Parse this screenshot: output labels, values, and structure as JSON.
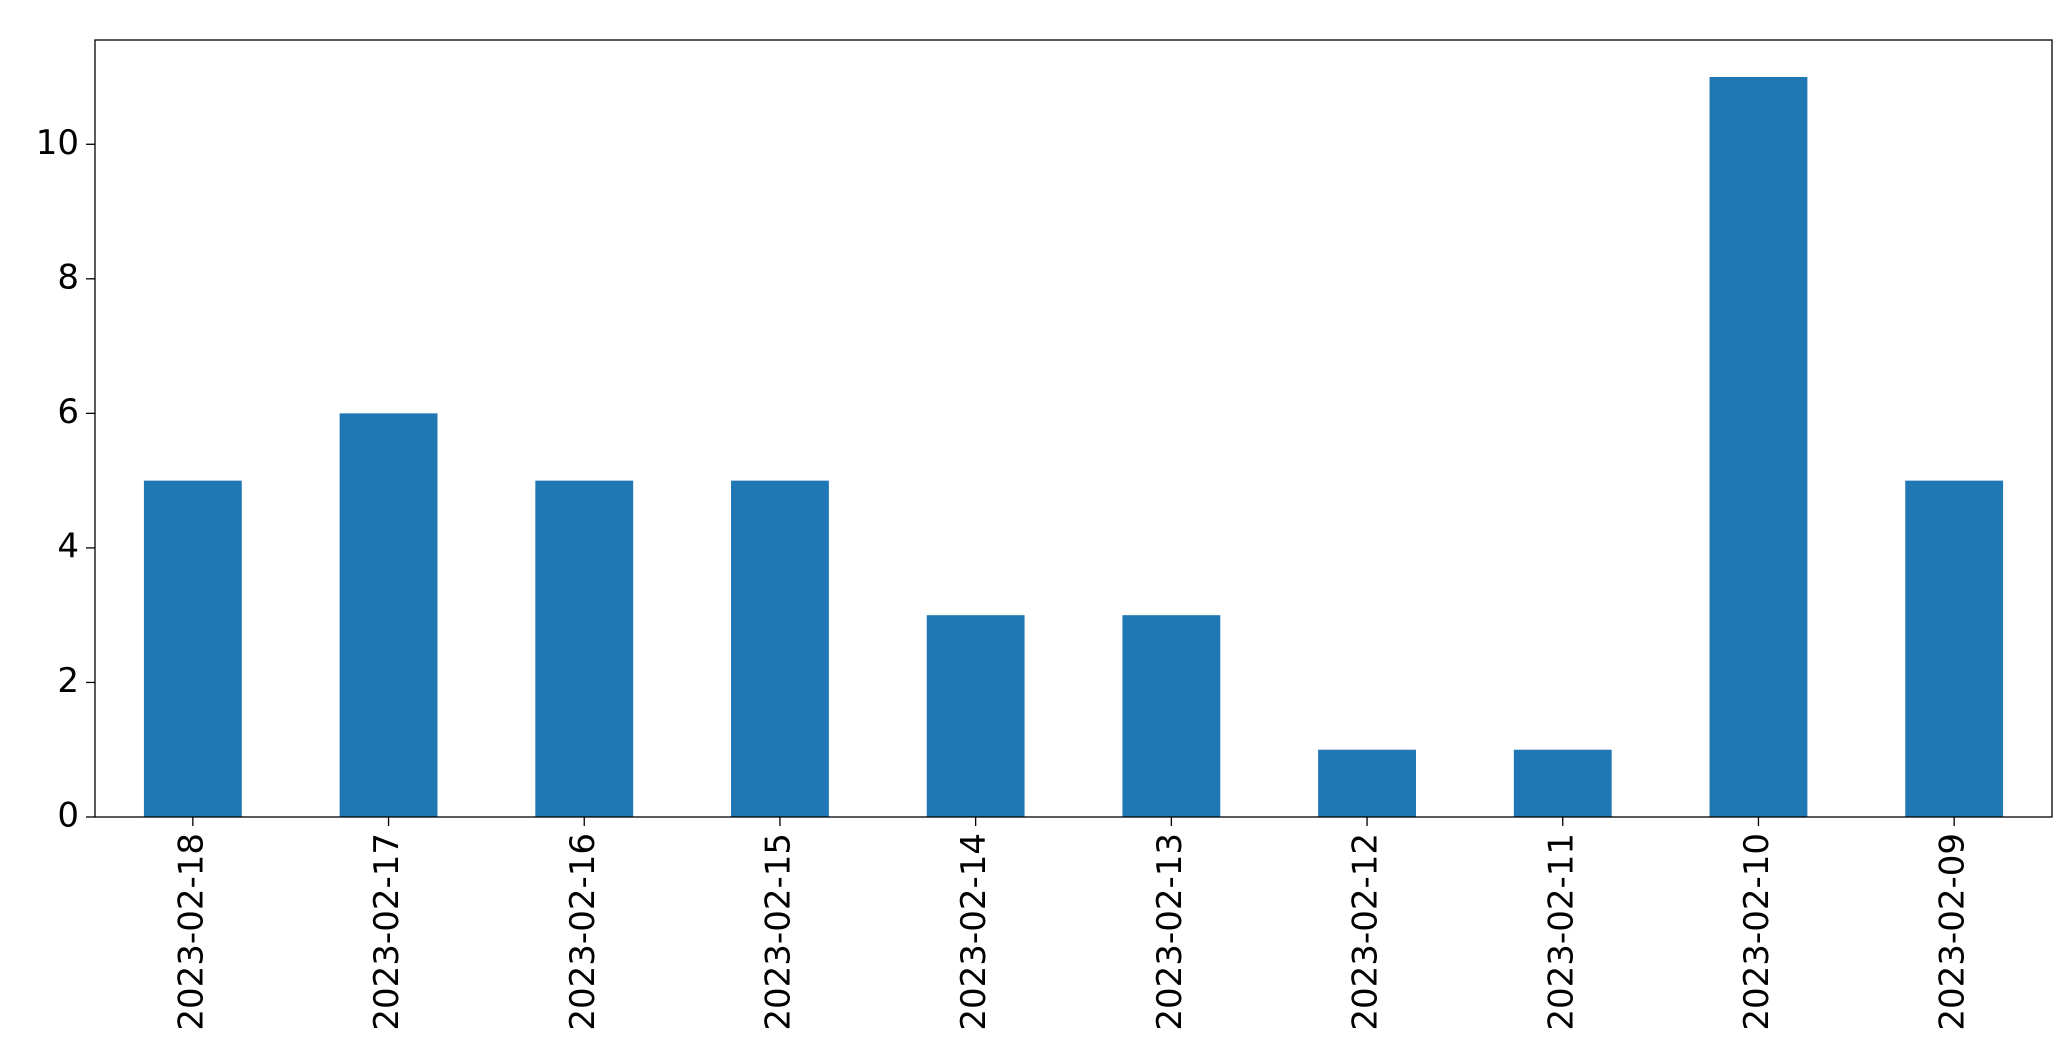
{
  "chart_data": {
    "type": "bar",
    "categories": [
      "2023-02-18",
      "2023-02-17",
      "2023-02-16",
      "2023-02-15",
      "2023-02-14",
      "2023-02-13",
      "2023-02-12",
      "2023-02-11",
      "2023-02-10",
      "2023-02-09"
    ],
    "values": [
      5,
      6,
      5,
      5,
      3,
      3,
      1,
      1,
      11,
      5
    ],
    "color": "#1f77b4",
    "ylim": [
      0,
      11.55
    ],
    "yticks": [
      0,
      2,
      4,
      6,
      8,
      10
    ],
    "grid": false
  }
}
